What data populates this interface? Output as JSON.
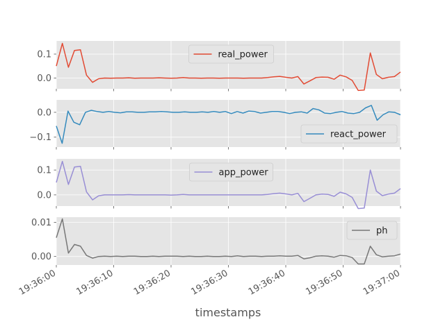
{
  "chart_data": {
    "type": "line",
    "style": "ggplot",
    "xlabel": "timestamps",
    "x_tick_labels": [
      "19:36:00",
      "19:36:10",
      "19:36:20",
      "19:36:30",
      "19:36:40",
      "19:36:50",
      "19:37:00"
    ],
    "x_range_seconds": [
      0,
      60
    ],
    "grid": true,
    "panels": [
      {
        "name": "real_power",
        "color": "#E24A33",
        "legend_placement": "top-center",
        "ylim": [
          -0.045,
          0.155
        ],
        "yticks": [
          0.0,
          0.1
        ],
        "ytick_labels": [
          "0.0",
          "0.1"
        ],
        "values": [
          0.05,
          0.145,
          0.045,
          0.115,
          0.118,
          0.012,
          -0.018,
          -0.003,
          0.0,
          -0.001,
          0.0,
          0.0,
          0.001,
          -0.001,
          0.0,
          0.0,
          0.0,
          0.001,
          0.0,
          -0.001,
          0.0,
          0.002,
          0.0,
          0.0,
          -0.001,
          0.0,
          0.0,
          -0.001,
          0.0,
          0.0,
          0.0,
          -0.001,
          0.0,
          0.0,
          0.0,
          0.002,
          0.005,
          0.007,
          0.003,
          0.0,
          0.006,
          -0.025,
          -0.012,
          0.002,
          0.004,
          0.003,
          -0.005,
          0.012,
          0.005,
          -0.01,
          -0.052,
          -0.05,
          0.105,
          0.015,
          -0.003,
          0.003,
          0.006,
          0.025
        ]
      },
      {
        "name": "react_power",
        "color": "#348ABD",
        "legend_placement": "bottom-right",
        "ylim": [
          -0.14,
          0.05
        ],
        "yticks": [
          -0.1,
          0.0
        ],
        "ytick_labels": [
          "−0.1",
          "0.0"
        ],
        "values": [
          -0.055,
          -0.125,
          0.005,
          -0.04,
          -0.05,
          0.0,
          0.008,
          0.003,
          0.0,
          0.003,
          0.0,
          -0.002,
          0.002,
          0.002,
          0.0,
          0.0,
          0.002,
          0.002,
          0.003,
          0.002,
          0.0,
          0.0,
          0.002,
          0.0,
          0.0,
          0.002,
          0.0,
          0.003,
          0.0,
          0.003,
          -0.005,
          0.003,
          -0.003,
          0.005,
          0.003,
          -0.003,
          0.0,
          0.003,
          0.003,
          0.0,
          -0.005,
          0.0,
          0.002,
          -0.003,
          0.015,
          0.01,
          -0.003,
          -0.005,
          0.0,
          0.003,
          -0.003,
          -0.005,
          0.0,
          0.018,
          0.028,
          -0.032,
          -0.01,
          0.002,
          0.0,
          -0.01
        ]
      },
      {
        "name": "app_power",
        "color": "#988ED5",
        "legend_placement": "top-center",
        "ylim": [
          -0.045,
          0.145
        ],
        "yticks": [
          0.0,
          0.1
        ],
        "ytick_labels": [
          "0.0",
          "0.1"
        ],
        "values": [
          0.05,
          0.135,
          0.042,
          0.112,
          0.115,
          0.012,
          -0.02,
          -0.004,
          0.0,
          0.0,
          0.0,
          0.0,
          0.001,
          0.0,
          0.0,
          0.0,
          0.0,
          0.0,
          0.0,
          -0.001,
          0.0,
          0.002,
          0.0,
          0.0,
          0.0,
          0.0,
          0.0,
          0.0,
          0.0,
          0.0,
          0.0,
          0.0,
          0.0,
          0.0,
          0.0,
          0.002,
          0.005,
          0.007,
          0.004,
          0.0,
          0.006,
          -0.027,
          -0.014,
          0.0,
          0.003,
          0.002,
          -0.006,
          0.011,
          0.004,
          -0.01,
          -0.055,
          -0.053,
          0.1,
          0.015,
          -0.003,
          0.003,
          0.007,
          0.025
        ]
      },
      {
        "name": "ph",
        "color": "#777777",
        "legend_placement": "top-right",
        "ylim": [
          -0.0025,
          0.0115
        ],
        "yticks": [
          0.0,
          0.01
        ],
        "ytick_labels": [
          "0.00",
          "0.01"
        ],
        "values": [
          0.0055,
          0.011,
          0.001,
          0.0035,
          0.003,
          0.0003,
          -0.0005,
          0.0,
          0.0001,
          0.0,
          0.0001,
          0.0,
          0.0001,
          0.0001,
          0.0,
          0.0,
          0.0001,
          0.0,
          0.0001,
          0.0001,
          0.0001,
          0.0,
          0.0001,
          0.0,
          0.0,
          0.0001,
          0.0,
          0.0,
          0.0001,
          0.0,
          0.0002,
          0.0,
          0.0001,
          0.0001,
          0.0,
          0.0001,
          0.0001,
          0.0002,
          0.0001,
          0.0001,
          0.0003,
          -0.0007,
          -0.0004,
          0.0001,
          0.0002,
          0.0001,
          -0.0002,
          0.0003,
          0.0002,
          -0.0003,
          -0.0022,
          -0.0022,
          0.003,
          0.0005,
          -0.0001,
          0.0001,
          0.0002,
          0.0007
        ]
      }
    ]
  }
}
